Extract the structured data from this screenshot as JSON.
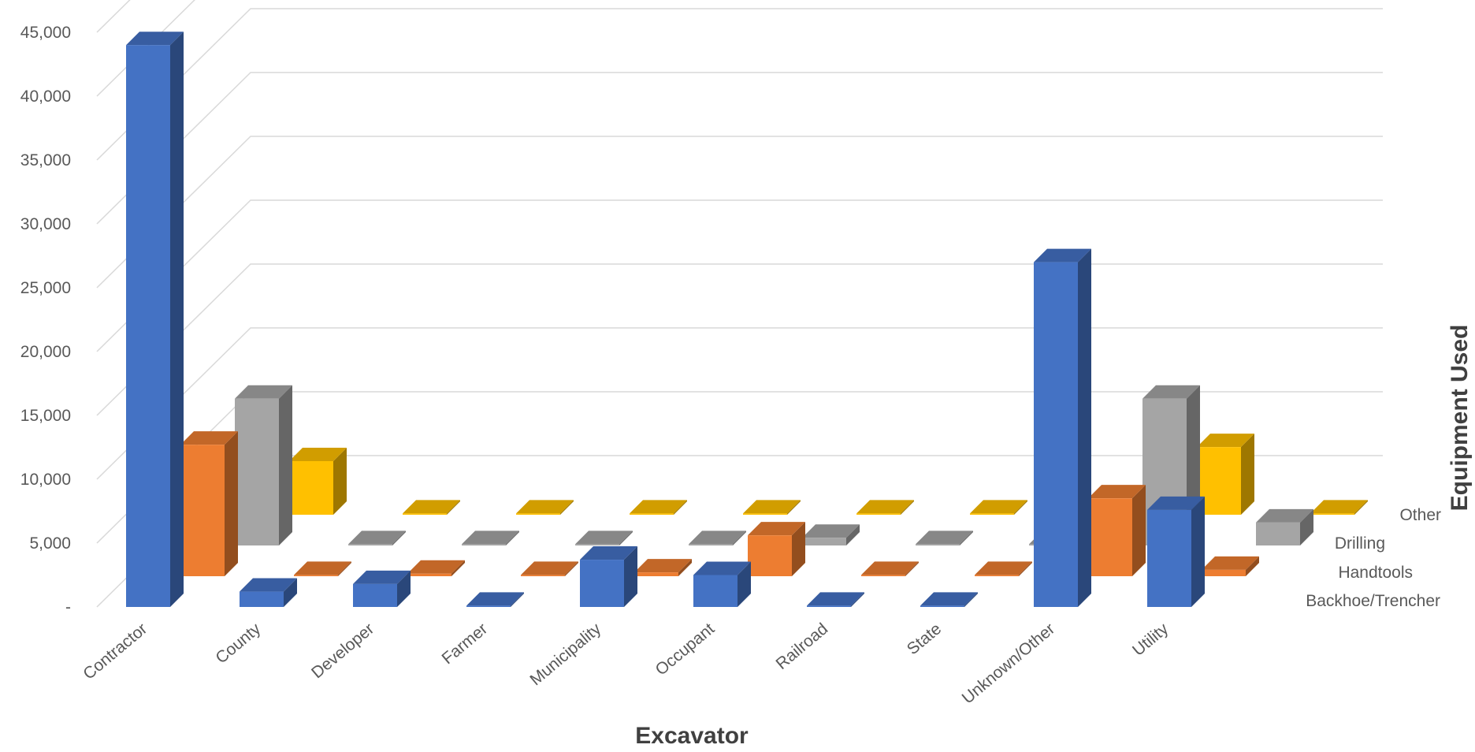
{
  "chart_data": {
    "type": "bar",
    "title": "",
    "xlabel": "Excavator",
    "zlabel": "Equipment Used",
    "ylim": [
      0,
      45000
    ],
    "y_ticks": [
      "-",
      "5,000",
      "10,000",
      "15,000",
      "20,000",
      "25,000",
      "30,000",
      "35,000",
      "40,000",
      "45,000"
    ],
    "grid": true,
    "categories": [
      "Contractor",
      "County",
      "Developer",
      "Farmer",
      "Municipality",
      "Occupant",
      "Railroad",
      "State",
      "Unknown/Other",
      "Utility"
    ],
    "series": [
      {
        "name": "Backhoe/Trencher",
        "values": [
          44000,
          1200,
          1800,
          100,
          3700,
          2500,
          100,
          100,
          27000,
          7600
        ]
      },
      {
        "name": "Handtools",
        "values": [
          10300,
          100,
          200,
          100,
          300,
          3200,
          100,
          100,
          6100,
          500
        ]
      },
      {
        "name": "Drilling",
        "values": [
          11500,
          100,
          100,
          100,
          100,
          600,
          100,
          100,
          11500,
          1800
        ]
      },
      {
        "name": "Other",
        "values": [
          4200,
          100,
          100,
          100,
          100,
          100,
          100,
          100,
          5300,
          100
        ]
      }
    ],
    "colors": {
      "Backhoe/Trencher": "#4472c4",
      "Handtools": "#ed7d31",
      "Drilling": "#a5a5a5",
      "Other": "#ffc000",
      "gridline": "#d9d9d9"
    }
  }
}
